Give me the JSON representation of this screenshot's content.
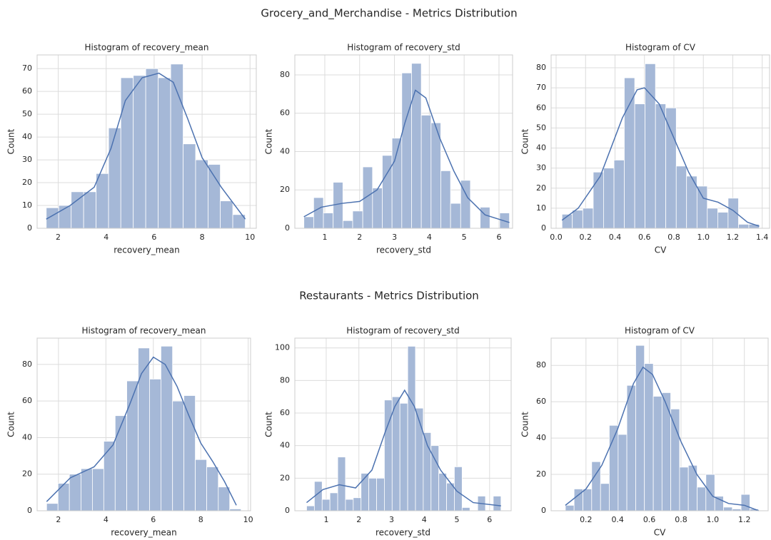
{
  "suptitles": [
    "Grocery_and_Merchandise  - Metrics Distribution",
    "Restaurants - Metrics Distribution"
  ],
  "chart_data": [
    {
      "type": "histogram",
      "title": "Histogram of recovery_mean",
      "xlabel": "recovery_mean",
      "ylabel": "Count",
      "color": "#a5b8d7",
      "grid": true,
      "bins": [
        1.5,
        2.02,
        2.54,
        3.06,
        3.58,
        4.1,
        4.61,
        5.13,
        5.65,
        6.17,
        6.69,
        7.21,
        7.73,
        8.25,
        8.76,
        9.28,
        9.8
      ],
      "values": [
        9,
        10,
        16,
        16,
        24,
        44,
        66,
        67,
        70,
        66,
        72,
        37,
        30,
        28,
        12,
        6
      ],
      "kde": {
        "color": "#4c72b0",
        "x": [
          1.5,
          2.5,
          3.5,
          4.2,
          4.8,
          5.5,
          6.2,
          6.8,
          7.4,
          8,
          8.8,
          9.8
        ],
        "values": [
          4,
          10,
          18,
          35,
          56,
          66,
          68,
          64,
          48,
          31,
          18,
          4
        ]
      },
      "xlim": [
        1.12,
        10.26
      ],
      "xticks": [
        2,
        4,
        6,
        8,
        10
      ],
      "ylim": [
        0,
        76
      ],
      "yticks": [
        0,
        10,
        20,
        30,
        40,
        50,
        60,
        70
      ]
    },
    {
      "type": "histogram",
      "title": "Histogram of recovery_std",
      "xlabel": "recovery_std",
      "ylabel": "Count",
      "color": "#a5b8d7",
      "grid": true,
      "bins": [
        0.4,
        0.68,
        0.96,
        1.24,
        1.52,
        1.8,
        2.09,
        2.37,
        2.65,
        2.93,
        3.21,
        3.49,
        3.77,
        4.05,
        4.33,
        4.61,
        4.9,
        5.18,
        5.46,
        5.74,
        6.02,
        6.3
      ],
      "values": [
        6,
        16,
        8,
        24,
        4,
        9,
        32,
        21,
        38,
        47,
        81,
        86,
        59,
        55,
        30,
        13,
        25,
        0,
        11,
        0,
        8
      ],
      "kde": {
        "color": "#4c72b0",
        "x": [
          0.4,
          0.9,
          1.5,
          2.0,
          2.5,
          3.0,
          3.3,
          3.6,
          3.9,
          4.3,
          4.7,
          5.1,
          5.6,
          6.3
        ],
        "values": [
          6,
          11,
          13,
          14,
          20,
          35,
          55,
          72,
          68,
          47,
          30,
          16,
          7,
          3
        ]
      },
      "xlim": [
        0.14,
        6.39
      ],
      "xticks": [
        1,
        2,
        3,
        4,
        5,
        6
      ],
      "ylim": [
        0,
        90.4
      ],
      "yticks": [
        0,
        20,
        40,
        60,
        80
      ]
    },
    {
      "type": "histogram",
      "title": "Histogram of CV",
      "xlabel": "CV",
      "ylabel": "Count",
      "color": "#a5b8d7",
      "grid": true,
      "bins": [
        0.04,
        0.11,
        0.181,
        0.252,
        0.322,
        0.393,
        0.463,
        0.534,
        0.604,
        0.675,
        0.745,
        0.816,
        0.886,
        0.957,
        1.027,
        1.098,
        1.168,
        1.239,
        1.309,
        1.38
      ],
      "values": [
        7,
        9,
        10,
        28,
        30,
        34,
        75,
        62,
        82,
        62,
        60,
        31,
        26,
        21,
        10,
        8,
        15,
        2,
        2
      ],
      "kde": {
        "color": "#4c72b0",
        "x": [
          0.04,
          0.15,
          0.3,
          0.45,
          0.55,
          0.6,
          0.7,
          0.8,
          0.9,
          1.0,
          1.1,
          1.2,
          1.3,
          1.38
        ],
        "values": [
          4,
          10,
          26,
          55,
          69,
          70,
          62,
          45,
          28,
          15,
          13,
          9,
          3,
          1
        ]
      },
      "xlim": [
        -0.034,
        1.45
      ],
      "xticks": [
        {
          "value": 0,
          "label": "0.0"
        },
        0.2,
        0.4,
        0.6,
        0.8,
        {
          "value": 1,
          "label": "1.0"
        },
        1.2,
        1.4
      ],
      "ylim": [
        0,
        86.4
      ],
      "yticks": [
        0,
        10,
        20,
        30,
        40,
        50,
        60,
        70,
        80
      ]
    },
    {
      "type": "histogram",
      "title": "Histogram of recovery_mean",
      "xlabel": "recovery_mean",
      "ylabel": "Count",
      "color": "#a5b8d7",
      "grid": true,
      "bins": [
        1.5,
        1.98,
        2.46,
        2.95,
        3.43,
        3.91,
        4.39,
        4.88,
        5.36,
        5.84,
        6.32,
        6.81,
        7.29,
        7.77,
        8.25,
        8.74,
        9.22,
        9.7
      ],
      "values": [
        4,
        15,
        20,
        23,
        23,
        38,
        52,
        71,
        89,
        72,
        90,
        60,
        63,
        28,
        24,
        13,
        1
      ],
      "kde": {
        "color": "#4c72b0",
        "x": [
          1.5,
          2.5,
          3.5,
          4.3,
          5,
          5.5,
          6,
          6.5,
          7,
          7.5,
          8,
          8.5,
          9,
          9.5
        ],
        "values": [
          5,
          18,
          24,
          36,
          58,
          75,
          84,
          80,
          68,
          52,
          37,
          27,
          16,
          3
        ]
      },
      "xlim": [
        1.1,
        10.1
      ],
      "xticks": [
        2,
        4,
        6,
        8,
        10
      ],
      "ylim": [
        0,
        94.4
      ],
      "yticks": [
        0,
        20,
        40,
        60,
        80
      ]
    },
    {
      "type": "histogram",
      "title": "Histogram of recovery_std",
      "xlabel": "recovery_std",
      "ylabel": "Count",
      "color": "#a5b8d7",
      "grid": true,
      "bins": [
        0.4,
        0.638,
        0.876,
        1.114,
        1.352,
        1.59,
        1.828,
        2.066,
        2.304,
        2.542,
        2.78,
        3.018,
        3.256,
        3.494,
        3.732,
        3.97,
        4.208,
        4.446,
        4.684,
        4.922,
        5.16,
        5.398,
        5.636,
        5.874,
        6.112,
        6.35
      ],
      "values": [
        3,
        18,
        7,
        11,
        33,
        7,
        8,
        23,
        20,
        20,
        68,
        70,
        66,
        101,
        63,
        48,
        40,
        23,
        17,
        27,
        2,
        0,
        9,
        0,
        9
      ],
      "kde": {
        "color": "#4c72b0",
        "x": [
          0.4,
          0.9,
          1.4,
          1.9,
          2.4,
          2.8,
          3.1,
          3.4,
          3.7,
          4.1,
          4.5,
          5,
          5.5,
          6.35
        ],
        "values": [
          5,
          13,
          16,
          14,
          25,
          48,
          64,
          74,
          64,
          40,
          25,
          12,
          5,
          3
        ]
      },
      "xlim": [
        0.04,
        6.66
      ],
      "xticks": [
        1,
        2,
        3,
        4,
        5,
        6
      ],
      "ylim": [
        0,
        106
      ],
      "yticks": [
        0,
        20,
        40,
        60,
        80,
        100
      ]
    },
    {
      "type": "histogram",
      "title": "Histogram of CV",
      "xlabel": "CV",
      "ylabel": "Count",
      "color": "#a5b8d7",
      "grid": true,
      "bins": [
        0.07,
        0.125,
        0.181,
        0.236,
        0.292,
        0.347,
        0.403,
        0.458,
        0.514,
        0.569,
        0.625,
        0.68,
        0.735,
        0.791,
        0.846,
        0.902,
        0.957,
        1.013,
        1.068,
        1.124,
        1.179,
        1.235,
        1.29
      ],
      "values": [
        3,
        12,
        12,
        27,
        15,
        47,
        42,
        69,
        91,
        81,
        63,
        65,
        56,
        24,
        25,
        13,
        20,
        8,
        2,
        1,
        9,
        1
      ],
      "kde": {
        "color": "#4c72b0",
        "x": [
          0.07,
          0.2,
          0.3,
          0.4,
          0.5,
          0.56,
          0.62,
          0.7,
          0.8,
          0.9,
          1.0,
          1.1,
          1.2,
          1.29
        ],
        "values": [
          3,
          12,
          25,
          45,
          70,
          79,
          75,
          60,
          38,
          20,
          8,
          4,
          3,
          0
        ]
      },
      "xlim": [
        -0.02,
        1.35
      ],
      "xticks": [
        0.2,
        0.4,
        0.6,
        0.8,
        {
          "value": 1,
          "label": "1.0"
        },
        1.2
      ],
      "ylim": [
        0,
        95
      ],
      "yticks": [
        0,
        20,
        40,
        60,
        80
      ]
    }
  ]
}
